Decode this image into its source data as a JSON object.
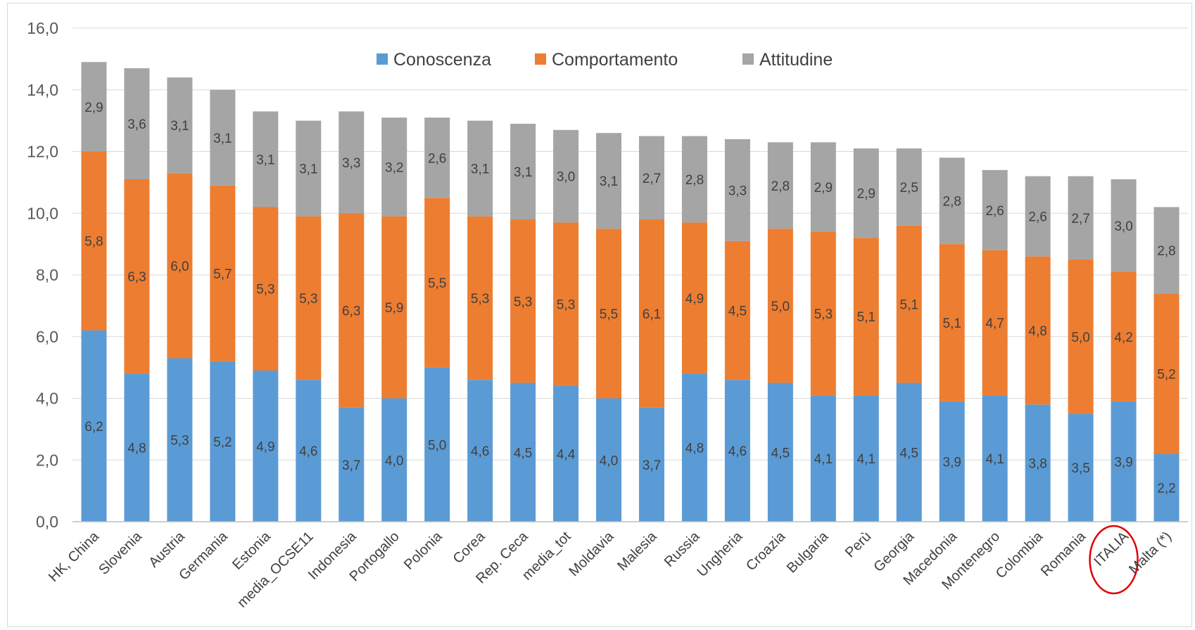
{
  "chart_data": {
    "type": "bar",
    "stacked": true,
    "categories": [
      "HK, China",
      "Slovenia",
      "Austria",
      "Germania",
      "Estonia",
      "media_OCSE11",
      "Indonesia",
      "Portogallo",
      "Polonia",
      "Corea",
      "Rep. Ceca",
      "media_tot",
      "Moldavia",
      "Malesia",
      "Russia",
      "Ungheria",
      "Croazia",
      "Bulgaria",
      "Perù",
      "Georgia",
      "Macedonia",
      "Montenegro",
      "Colombia",
      "Romania",
      "ITALIA",
      "Malta (*)"
    ],
    "series": [
      {
        "name": "Conoscenza",
        "color": "#5b9bd5",
        "values": [
          6.2,
          4.8,
          5.3,
          5.2,
          4.9,
          4.6,
          3.7,
          4.0,
          5.0,
          4.6,
          4.5,
          4.4,
          4.0,
          3.7,
          4.8,
          4.6,
          4.5,
          4.1,
          4.1,
          4.5,
          3.9,
          4.1,
          3.8,
          3.5,
          3.9,
          2.2
        ],
        "labels": [
          "6,2",
          "4,8",
          "5,3",
          "5,2",
          "4,9",
          "4,6",
          "3,7",
          "4,0",
          "5,0",
          "4,6",
          "4,5",
          "4,4",
          "4,0",
          "3,7",
          "4,8",
          "4,6",
          "4,5",
          "4,1",
          "4,1",
          "4,5",
          "3,9",
          "4,1",
          "3,8",
          "3,5",
          "3,9",
          "2,2"
        ]
      },
      {
        "name": "Comportamento",
        "color": "#ed7d31",
        "values": [
          5.8,
          6.3,
          6.0,
          5.7,
          5.3,
          5.3,
          6.3,
          5.9,
          5.5,
          5.3,
          5.3,
          5.3,
          5.5,
          6.1,
          4.9,
          4.5,
          5.0,
          5.3,
          5.1,
          5.1,
          5.1,
          4.7,
          4.8,
          5.0,
          4.2,
          5.2
        ],
        "labels": [
          "5,8",
          "6,3",
          "6,0",
          "5,7",
          "5,3",
          "5,3",
          "6,3",
          "5,9",
          "5,5",
          "5,3",
          "5,3",
          "5,3",
          "5,5",
          "6,1",
          "4,9",
          "4,5",
          "5,0",
          "5,3",
          "5,1",
          "5,1",
          "5,1",
          "4,7",
          "4,8",
          "5,0",
          "4,2",
          "5,2"
        ]
      },
      {
        "name": "Attitudine",
        "color": "#a5a5a5",
        "values": [
          2.9,
          3.6,
          3.1,
          3.1,
          3.1,
          3.1,
          3.3,
          3.2,
          2.6,
          3.1,
          3.1,
          3.0,
          3.1,
          2.7,
          2.8,
          3.3,
          2.8,
          2.9,
          2.9,
          2.5,
          2.8,
          2.6,
          2.6,
          2.7,
          3.0,
          2.8
        ],
        "labels": [
          "2,9",
          "3,6",
          "3,1",
          "3,1",
          "3,1",
          "3,1",
          "3,3",
          "3,2",
          "2,6",
          "3,1",
          "3,1",
          "3,0",
          "3,1",
          "2,7",
          "2,8",
          "3,3",
          "2,8",
          "2,9",
          "2,9",
          "2,5",
          "2,8",
          "2,6",
          "2,6",
          "2,7",
          "3,0",
          "2,8"
        ]
      }
    ],
    "ylim": [
      0,
      16
    ],
    "yticks": [
      "0,0",
      "2,0",
      "4,0",
      "6,0",
      "8,0",
      "10,0",
      "12,0",
      "14,0",
      "16,0"
    ],
    "legend_position": "top",
    "grid": true,
    "highlighted_category": "ITALIA",
    "highlight_color": "#e00000"
  }
}
